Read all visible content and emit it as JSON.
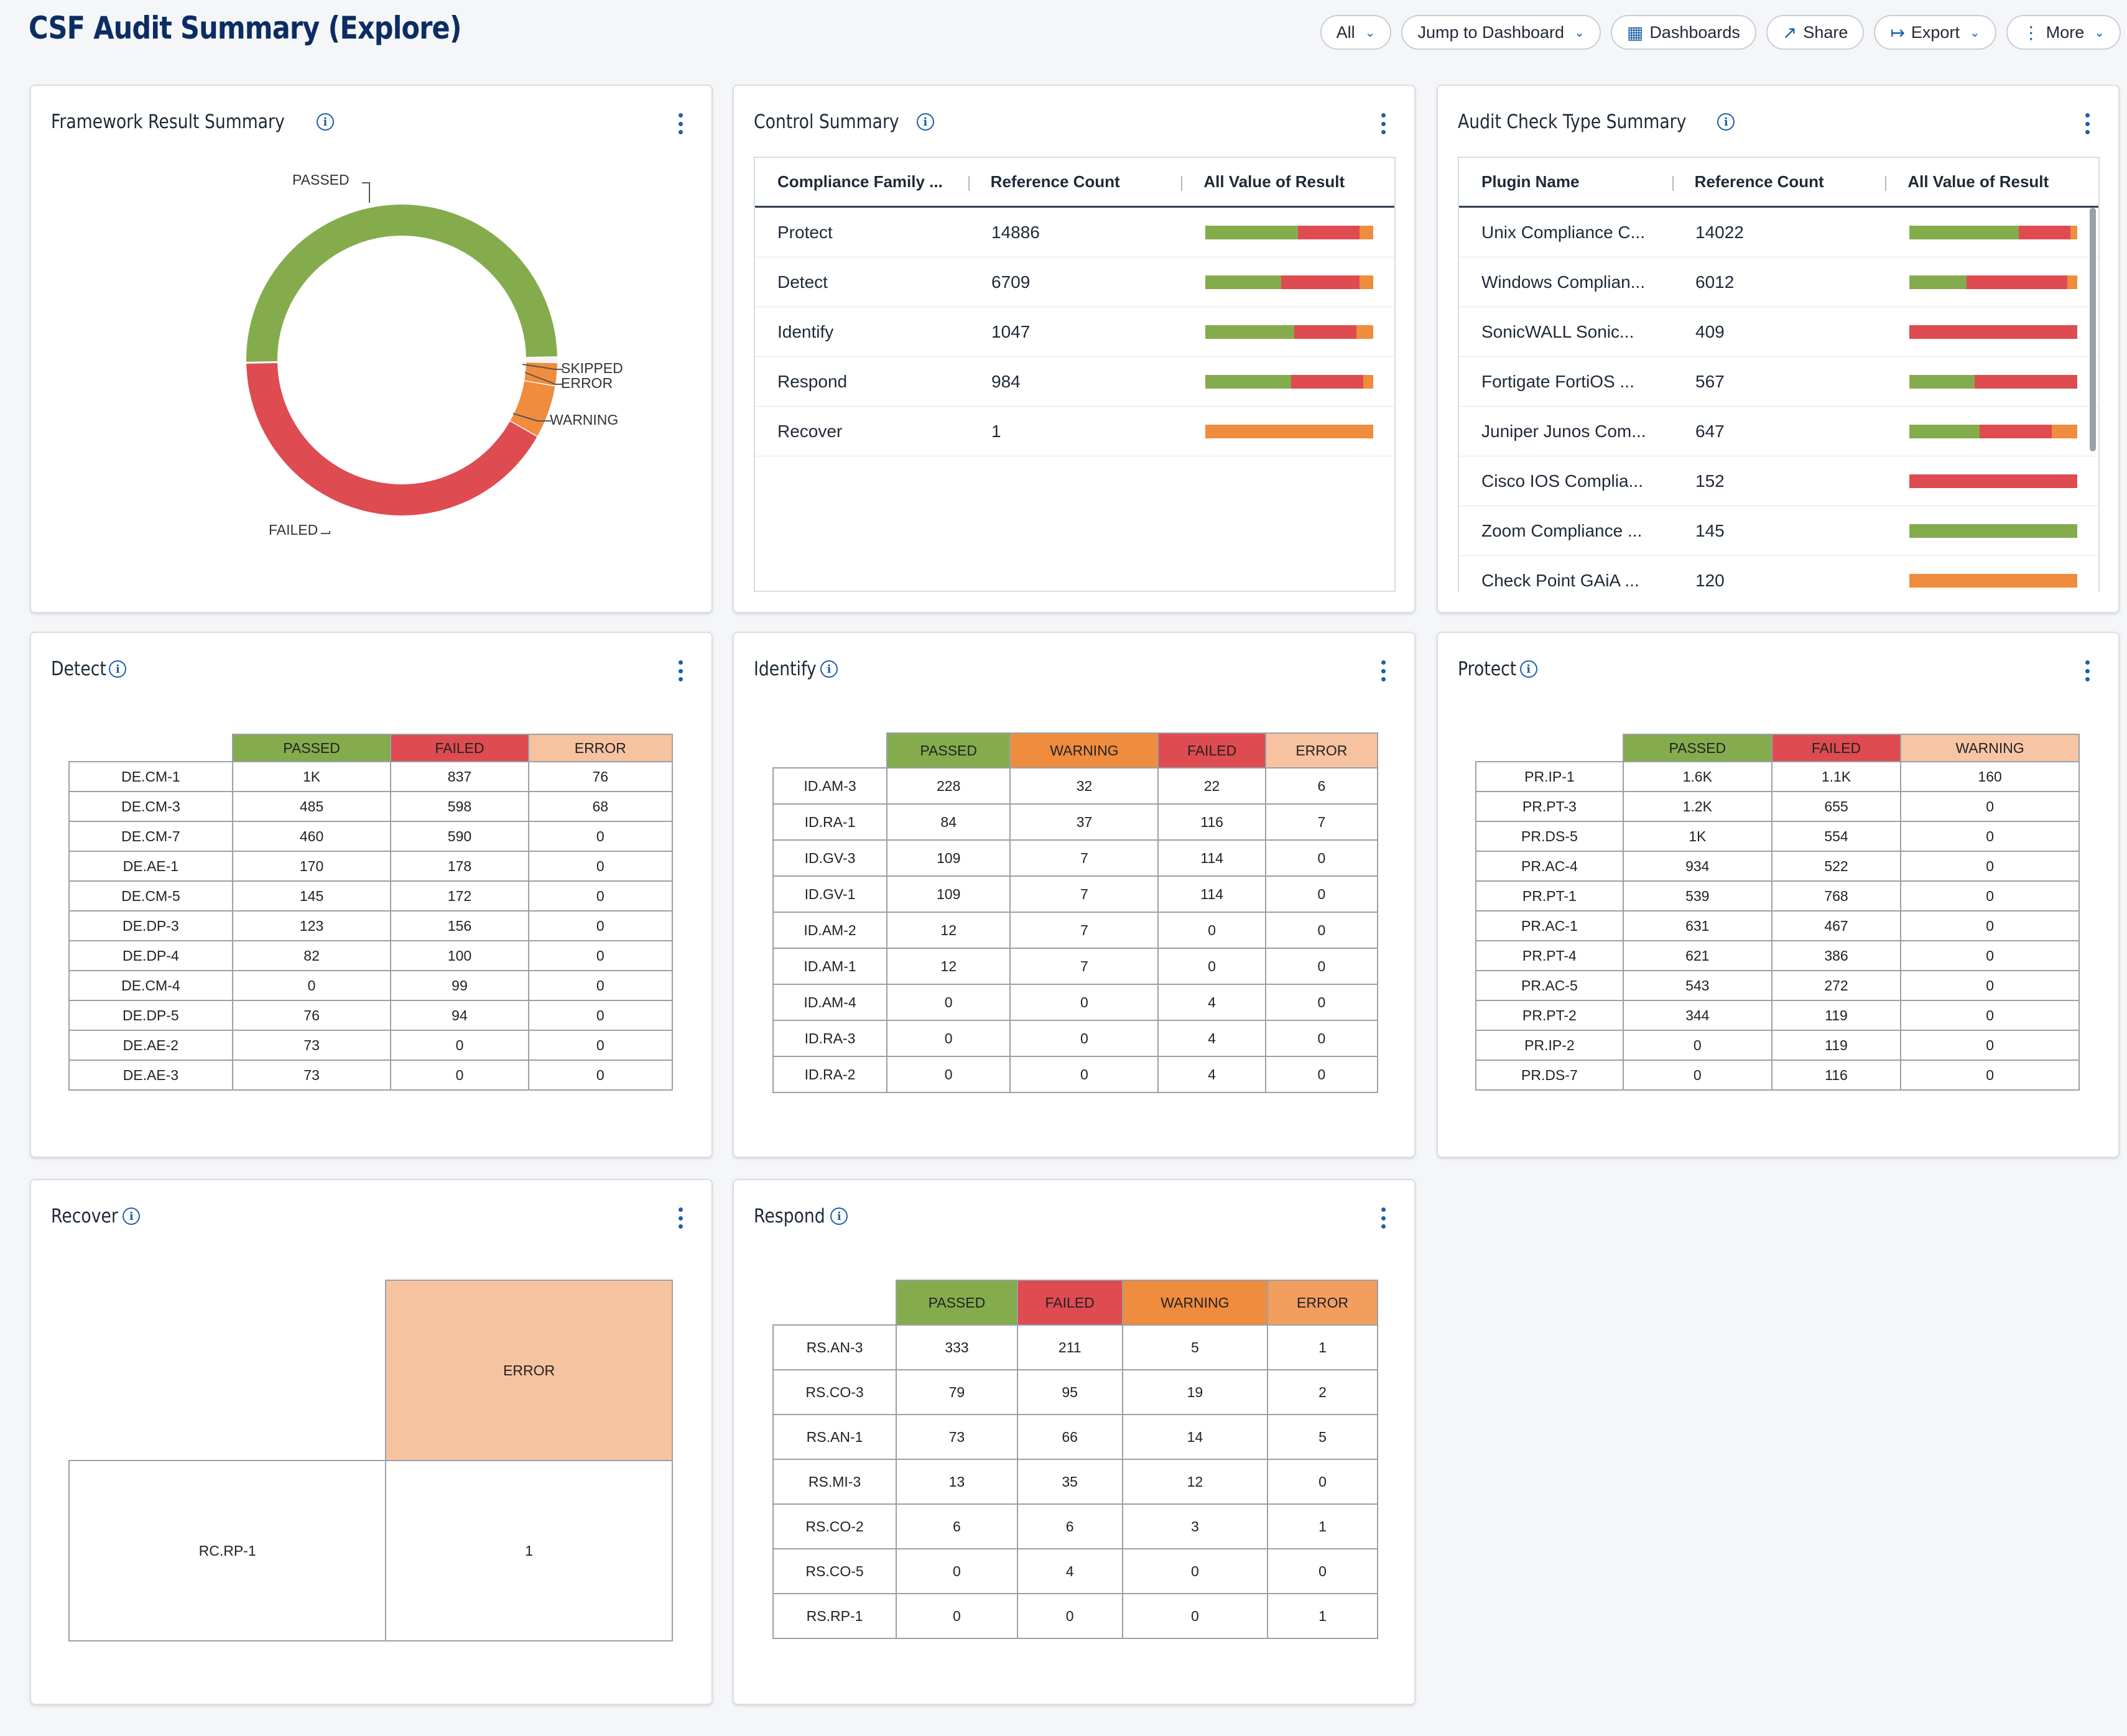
{
  "header": {
    "title": "CSF Audit Summary (Explore)",
    "buttons": {
      "all": "All",
      "jump": "Jump to Dashboard",
      "dashboards": "Dashboards",
      "share": "Share",
      "export": "Export",
      "more": "More"
    }
  },
  "colors": {
    "passed": "#84ac4d",
    "failed": "#de4b50",
    "warning": "#ef8c3e",
    "error": "#f29e5e",
    "error_light": "#f7c29f",
    "warning_light": "#f7c5a4",
    "link": "#1f5fa8"
  },
  "framework": {
    "title": "Framework Result Summary",
    "labels": {
      "passed": "PASSED",
      "skipped": "SKIPPED",
      "error": "ERROR",
      "warning": "WARNING",
      "failed": "FAILED"
    },
    "chart_data": {
      "type": "pie",
      "style": "donut",
      "categories": [
        "PASSED",
        "SKIPPED",
        "ERROR",
        "WARNING",
        "FAILED"
      ],
      "values": [
        50.0,
        0.6,
        2.4,
        5.5,
        41.5
      ],
      "unit": "percent (estimated)"
    }
  },
  "control": {
    "title": "Control Summary",
    "columns": [
      "Compliance Family ...",
      "Reference Count",
      "All Value of Result"
    ],
    "rows": [
      {
        "name": "Protect",
        "count": "14886",
        "result": {
          "passed": 0.55,
          "failed": 0.37,
          "warning": 0.08
        }
      },
      {
        "name": "Detect",
        "count": "6709",
        "result": {
          "passed": 0.45,
          "failed": 0.47,
          "warning": 0.08
        }
      },
      {
        "name": "Identify",
        "count": "1047",
        "result": {
          "passed": 0.53,
          "failed": 0.37,
          "warning": 0.1
        }
      },
      {
        "name": "Respond",
        "count": "984",
        "result": {
          "passed": 0.51,
          "failed": 0.43,
          "warning": 0.06
        }
      },
      {
        "name": "Recover",
        "count": "1",
        "result": {
          "passed": 0,
          "failed": 0,
          "warning": 1.0
        }
      }
    ]
  },
  "audit": {
    "title": "Audit Check Type Summary",
    "columns": [
      "Plugin Name",
      "Reference Count",
      "All Value of Result"
    ],
    "rows": [
      {
        "name": "Unix Compliance C...",
        "count": "14022",
        "result": {
          "passed": 0.65,
          "failed": 0.31,
          "warning": 0.04
        }
      },
      {
        "name": "Windows Complian...",
        "count": "6012",
        "result": {
          "passed": 0.34,
          "failed": 0.6,
          "warning": 0.06
        }
      },
      {
        "name": "SonicWALL Sonic...",
        "count": "409",
        "result": {
          "passed": 0,
          "failed": 1.0,
          "warning": 0
        }
      },
      {
        "name": "Fortigate FortiOS ...",
        "count": "567",
        "result": {
          "passed": 0.39,
          "failed": 0.61,
          "warning": 0
        }
      },
      {
        "name": "Juniper Junos Com...",
        "count": "647",
        "result": {
          "passed": 0.42,
          "failed": 0.43,
          "warning": 0.15
        }
      },
      {
        "name": "Cisco IOS Complia...",
        "count": "152",
        "result": {
          "passed": 0,
          "failed": 1.0,
          "warning": 0
        }
      },
      {
        "name": "Zoom Compliance ...",
        "count": "145",
        "result": {
          "passed": 1.0,
          "failed": 0,
          "warning": 0
        }
      },
      {
        "name": "Check Point GAiA ...",
        "count": "120",
        "result": {
          "passed": 0,
          "failed": 0,
          "warning": 1.0
        }
      }
    ]
  },
  "detect": {
    "title": "Detect",
    "headers": [
      "PASSED",
      "FAILED",
      "ERROR"
    ],
    "rows": [
      [
        "DE.CM-1",
        "1K",
        "837",
        "76"
      ],
      [
        "DE.CM-3",
        "485",
        "598",
        "68"
      ],
      [
        "DE.CM-7",
        "460",
        "590",
        "0"
      ],
      [
        "DE.AE-1",
        "170",
        "178",
        "0"
      ],
      [
        "DE.CM-5",
        "145",
        "172",
        "0"
      ],
      [
        "DE.DP-3",
        "123",
        "156",
        "0"
      ],
      [
        "DE.DP-4",
        "82",
        "100",
        "0"
      ],
      [
        "DE.CM-4",
        "0",
        "99",
        "0"
      ],
      [
        "DE.DP-5",
        "76",
        "94",
        "0"
      ],
      [
        "DE.AE-2",
        "73",
        "0",
        "0"
      ],
      [
        "DE.AE-3",
        "73",
        "0",
        "0"
      ]
    ]
  },
  "identify": {
    "title": "Identify",
    "headers": [
      "PASSED",
      "WARNING",
      "FAILED",
      "ERROR"
    ],
    "rows": [
      [
        "ID.AM-3",
        "228",
        "32",
        "22",
        "6"
      ],
      [
        "ID.RA-1",
        "84",
        "37",
        "116",
        "7"
      ],
      [
        "ID.GV-3",
        "109",
        "7",
        "114",
        "0"
      ],
      [
        "ID.GV-1",
        "109",
        "7",
        "114",
        "0"
      ],
      [
        "ID.AM-2",
        "12",
        "7",
        "0",
        "0"
      ],
      [
        "ID.AM-1",
        "12",
        "7",
        "0",
        "0"
      ],
      [
        "ID.AM-4",
        "0",
        "0",
        "4",
        "0"
      ],
      [
        "ID.RA-3",
        "0",
        "0",
        "4",
        "0"
      ],
      [
        "ID.RA-2",
        "0",
        "0",
        "4",
        "0"
      ]
    ]
  },
  "protect": {
    "title": "Protect",
    "headers": [
      "PASSED",
      "FAILED",
      "WARNING"
    ],
    "rows": [
      [
        "PR.IP-1",
        "1.6K",
        "1.1K",
        "160"
      ],
      [
        "PR.PT-3",
        "1.2K",
        "655",
        "0"
      ],
      [
        "PR.DS-5",
        "1K",
        "554",
        "0"
      ],
      [
        "PR.AC-4",
        "934",
        "522",
        "0"
      ],
      [
        "PR.PT-1",
        "539",
        "768",
        "0"
      ],
      [
        "PR.AC-1",
        "631",
        "467",
        "0"
      ],
      [
        "PR.PT-4",
        "621",
        "386",
        "0"
      ],
      [
        "PR.AC-5",
        "543",
        "272",
        "0"
      ],
      [
        "PR.PT-2",
        "344",
        "119",
        "0"
      ],
      [
        "PR.IP-2",
        "0",
        "119",
        "0"
      ],
      [
        "PR.DS-7",
        "0",
        "116",
        "0"
      ]
    ]
  },
  "recover": {
    "title": "Recover",
    "headers": [
      "ERROR"
    ],
    "rows": [
      [
        "RC.RP-1",
        "1"
      ]
    ]
  },
  "respond": {
    "title": "Respond",
    "headers": [
      "PASSED",
      "FAILED",
      "WARNING",
      "ERROR"
    ],
    "rows": [
      [
        "RS.AN-3",
        "333",
        "211",
        "5",
        "1"
      ],
      [
        "RS.CO-3",
        "79",
        "95",
        "19",
        "2"
      ],
      [
        "RS.AN-1",
        "73",
        "66",
        "14",
        "5"
      ],
      [
        "RS.MI-3",
        "13",
        "35",
        "12",
        "0"
      ],
      [
        "RS.CO-2",
        "6",
        "6",
        "3",
        "1"
      ],
      [
        "RS.CO-5",
        "0",
        "4",
        "0",
        "0"
      ],
      [
        "RS.RP-1",
        "0",
        "0",
        "0",
        "1"
      ]
    ]
  }
}
